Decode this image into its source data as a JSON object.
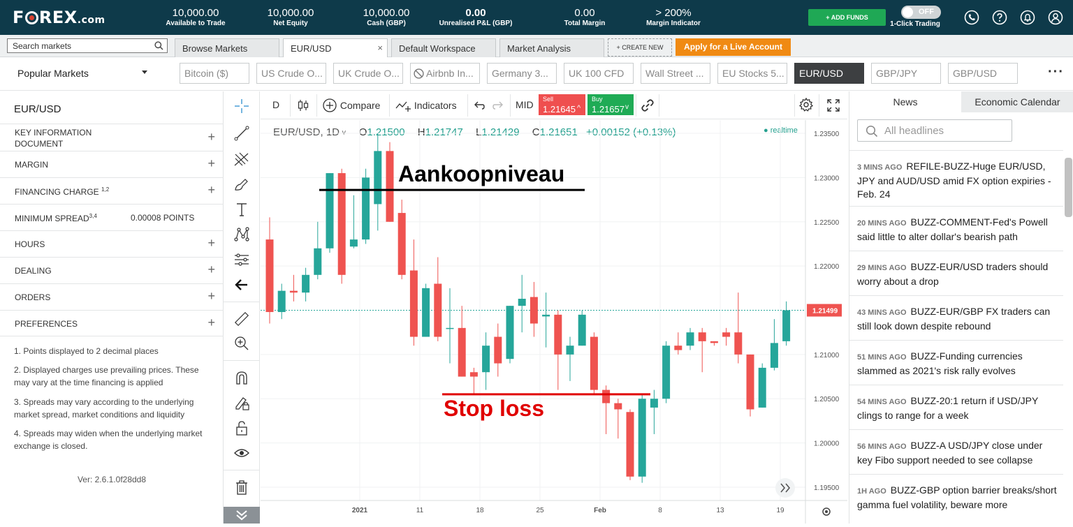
{
  "brand": {
    "logo_pre": "F",
    "logo_post": "REX",
    "logo_suffix": ".com"
  },
  "account": {
    "stats": [
      {
        "value": "10,000.00",
        "label": "Available to Trade"
      },
      {
        "value": "10,000.00",
        "label": "Net Equity"
      },
      {
        "value": "10,000.00",
        "label": "Cash (GBP)"
      },
      {
        "value": "0.00",
        "label": "Unrealised P&L (GBP)"
      },
      {
        "value": "0.00",
        "label": "Total Margin"
      },
      {
        "value": "> 200%",
        "label": "Margin Indicator"
      }
    ],
    "add_funds": "+ ADD FUNDS",
    "one_click_state": "OFF",
    "one_click_label": "1-Click Trading"
  },
  "tabs": {
    "search_placeholder": "Search markets",
    "items": [
      "Browse Markets",
      "EUR/USD",
      "Default Workspace",
      "Market Analysis"
    ],
    "create_new": "+ CREATE NEW",
    "live_account": "Apply for a Live Account"
  },
  "markets": {
    "popular_label": "Popular Markets",
    "items": [
      "Bitcoin ($)",
      "US Crude O...",
      "UK Crude O...",
      "Airbnb In...",
      "Germany 3...",
      "UK 100 CFD",
      "Wall Street ...",
      "EU Stocks 5...",
      "EUR/USD",
      "GBP/JPY",
      "GBP/USD"
    ],
    "selected": "EUR/USD"
  },
  "instrument": {
    "title": "EUR/USD",
    "sections": [
      {
        "label": "KEY INFORMATION DOCUMENT"
      },
      {
        "label": "MARGIN"
      },
      {
        "label": "FINANCING CHARGE",
        "sup": "1,2"
      },
      {
        "label": "MINIMUM SPREAD",
        "sup": "3,4",
        "value": "0.00008 POINTS"
      },
      {
        "label": "HOURS"
      },
      {
        "label": "DEALING"
      },
      {
        "label": "ORDERS"
      },
      {
        "label": "PREFERENCES"
      }
    ],
    "notes": [
      "1. Points displayed to 2 decimal places",
      "2. Displayed charges use prevailing prices. These may vary at the time financing is applied",
      "3. Spreads may vary according to the underlying market spread, market conditions and liquidity",
      "4. Spreads may widen when the underlying market exchange is closed."
    ],
    "version": "Ver: 2.6.1.0f28dd8"
  },
  "chart_toolbar": {
    "interval": "D",
    "compare": "Compare",
    "indicators": "Indicators",
    "price_mode": "MID",
    "sell_label": "Sell",
    "sell_price": "1.21645",
    "buy_label": "Buy",
    "buy_price": "1.21657"
  },
  "chart_legend": {
    "symbol": "EUR/USD, 1D",
    "open": "1.21500",
    "high": "1.21747",
    "low": "1.21429",
    "close": "1.21651",
    "change": "+0.00152 (+0.13%)",
    "realtime": "realtime"
  },
  "chart_data": {
    "type": "candlestick",
    "y_ticks": [
      "1.23500",
      "1.23000",
      "1.22500",
      "1.22000",
      "1.21000",
      "1.20500",
      "1.20000",
      "1.19500"
    ],
    "ylim": [
      1.1935,
      1.2365
    ],
    "x_ticks": [
      {
        "label": "2021",
        "i": 7.5
      },
      {
        "label": "11",
        "i": 12.5
      },
      {
        "label": "18",
        "i": 17.5
      },
      {
        "label": "25",
        "i": 22.5
      },
      {
        "label": "Feb",
        "i": 27.5
      },
      {
        "label": "8",
        "i": 32.5
      },
      {
        "label": "13",
        "i": 37.5
      },
      {
        "label": "19",
        "i": 42.5
      }
    ],
    "last_price_label": "1.21499",
    "last_price": 1.215,
    "annotations": [
      {
        "text": "Aankoopniveau",
        "price": 1.2286
      },
      {
        "text": "Stop loss",
        "price": 1.2055
      }
    ],
    "candles": [
      [
        1.223,
        1.2255,
        1.2135,
        1.2148
      ],
      [
        1.2148,
        1.218,
        1.214,
        1.2172
      ],
      [
        1.2172,
        1.219,
        1.216,
        1.217
      ],
      [
        1.217,
        1.2198,
        1.216,
        1.219
      ],
      [
        1.219,
        1.225,
        1.2185,
        1.222
      ],
      [
        1.222,
        1.2305,
        1.2215,
        1.2305
      ],
      [
        1.2305,
        1.231,
        1.218,
        1.219
      ],
      [
        1.2222,
        1.228,
        1.222,
        1.223
      ],
      [
        1.223,
        1.231,
        1.2225,
        1.23
      ],
      [
        1.227,
        1.235,
        1.224,
        1.233
      ],
      [
        1.233,
        1.234,
        1.225,
        1.225
      ],
      [
        1.226,
        1.2275,
        1.2185,
        1.219
      ],
      [
        1.2195,
        1.223,
        1.211,
        1.212
      ],
      [
        1.212,
        1.218,
        1.212,
        1.2175
      ],
      [
        1.218,
        1.221,
        1.2115,
        1.212
      ],
      [
        1.213,
        1.2175,
        1.209,
        1.213
      ],
      [
        1.213,
        1.2155,
        1.2075,
        1.2075
      ],
      [
        1.208,
        1.2085,
        1.2055,
        1.2075
      ],
      [
        1.208,
        1.2125,
        1.206,
        1.211
      ],
      [
        1.212,
        1.2135,
        1.2075,
        1.209
      ],
      [
        1.2095,
        1.2155,
        1.209,
        1.2155
      ],
      [
        1.2155,
        1.219,
        1.2125,
        1.2163
      ],
      [
        1.2165,
        1.2182,
        1.212,
        1.2135
      ],
      [
        1.2143,
        1.217,
        1.2108,
        1.2145
      ],
      [
        1.2145,
        1.215,
        1.206,
        1.21
      ],
      [
        1.21,
        1.212,
        1.207,
        1.211
      ],
      [
        1.211,
        1.215,
        1.211,
        1.2145
      ],
      [
        1.212,
        1.2125,
        1.2055,
        1.206
      ],
      [
        1.206,
        1.2065,
        1.201,
        1.2045
      ],
      [
        1.2045,
        1.205,
        1.2005,
        1.2038
      ],
      [
        1.2035,
        1.2038,
        1.1958,
        1.1962
      ],
      [
        1.1962,
        1.2055,
        1.1955,
        1.205
      ],
      [
        1.204,
        1.206,
        1.201,
        1.205
      ],
      [
        1.205,
        1.2115,
        1.2045,
        1.211
      ],
      [
        1.211,
        1.2125,
        1.21,
        1.2105
      ],
      [
        1.211,
        1.213,
        1.2105,
        1.2125
      ],
      [
        1.2125,
        1.213,
        1.208,
        1.2115
      ],
      [
        1.2115,
        1.2115,
        1.211,
        1.2113
      ],
      [
        1.2125,
        1.213,
        1.211,
        1.212
      ],
      [
        1.2125,
        1.217,
        1.209,
        1.21
      ],
      [
        1.21,
        1.21,
        1.203,
        1.2038
      ],
      [
        1.204,
        1.209,
        1.204,
        1.2085
      ],
      [
        1.2085,
        1.214,
        1.2082,
        1.2113
      ],
      [
        1.2115,
        1.216,
        1.211,
        1.215
      ]
    ]
  },
  "news": {
    "tab_news": "News",
    "tab_calendar": "Economic Calendar",
    "search_placeholder": "All headlines",
    "items": [
      {
        "ago": "3 MINS AGO",
        "text": "REFILE-BUZZ-Huge EUR/USD, JPY and AUD/USD amid FX option expiries - Feb. 24"
      },
      {
        "ago": "20 MINS AGO",
        "text": "BUZZ-COMMENT-Fed's Powell said little to alter dollar's bearish path"
      },
      {
        "ago": "29 MINS AGO",
        "text": "BUZZ-EUR/USD traders should worry about a drop"
      },
      {
        "ago": "43 MINS AGO",
        "text": "BUZZ-EUR/GBP FX traders can still look down despite rebound"
      },
      {
        "ago": "51 MINS AGO",
        "text": "BUZZ-Funding currencies slammed as 2021's risk rally evolves"
      },
      {
        "ago": "54 MINS AGO",
        "text": "BUZZ-20:1 return if USD/JPY clings to range for a week"
      },
      {
        "ago": "56 MINS AGO",
        "text": "BUZZ-A USD/JPY close under key Fibo support needed to see collapse"
      },
      {
        "ago": "1H AGO",
        "text": "BUZZ-GBP option barrier breaks/short gamma fuel volatility, beware more"
      }
    ]
  },
  "colors": {
    "up": "#26a69a",
    "down": "#ef5350",
    "brand": "#0e3a4a",
    "accent": "#f08a13",
    "buy": "#1fab55",
    "sell": "#ef4f4f"
  }
}
